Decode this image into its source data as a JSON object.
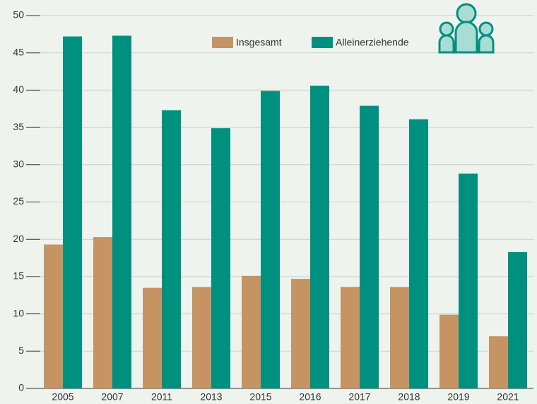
{
  "chart_data": {
    "type": "bar",
    "categories": [
      "2005",
      "2007",
      "2011",
      "2013",
      "2015",
      "2016",
      "2017",
      "2018",
      "2019",
      "2021"
    ],
    "series": [
      {
        "name": "Insgesamt",
        "color": "#c69463",
        "values": [
          19.3,
          20.3,
          13.5,
          13.6,
          15.1,
          14.7,
          13.6,
          13.6,
          9.9,
          7.0
        ]
      },
      {
        "name": "Alleinerziehende",
        "color": "#00907f",
        "values": [
          47.2,
          47.3,
          37.3,
          34.9,
          39.9,
          40.6,
          37.9,
          36.1,
          28.8,
          18.3
        ]
      }
    ],
    "ylim": [
      0,
      50
    ],
    "yticks": [
      0,
      5,
      10,
      15,
      20,
      25,
      30,
      35,
      40,
      45,
      50
    ],
    "grid": true
  }
}
